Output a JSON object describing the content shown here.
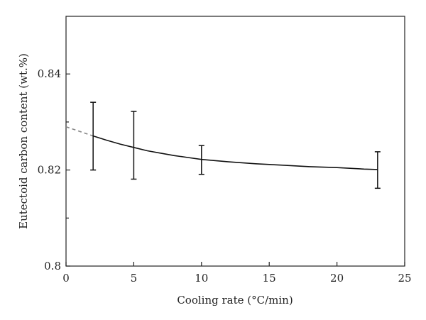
{
  "chart_data": {
    "type": "line",
    "xlabel": "Cooling rate (°C/min)",
    "ylabel": "Eutectoid carbon content (wt.%)",
    "xlim": [
      0,
      25
    ],
    "ylim": [
      0.8,
      0.852
    ],
    "x_ticks": [
      0,
      5,
      10,
      15,
      20,
      25
    ],
    "x_tick_labels": [
      "0",
      "5",
      "10",
      "15",
      "20",
      "25"
    ],
    "y_ticks": [
      0.8,
      0.82,
      0.84
    ],
    "y_tick_labels": [
      "0.8",
      "0.82",
      "0.84"
    ],
    "y_minor_ticks": [
      0.81,
      0.83
    ],
    "grid": false,
    "fit_curve": {
      "x": [
        2,
        3,
        4,
        5,
        6,
        7,
        8,
        9,
        10,
        12,
        14,
        16,
        18,
        20,
        22,
        23
      ],
      "y": [
        0.8271,
        0.8262,
        0.8254,
        0.8247,
        0.824,
        0.8235,
        0.823,
        0.8226,
        0.8222,
        0.8217,
        0.8213,
        0.821,
        0.8207,
        0.8205,
        0.8202,
        0.8201
      ]
    },
    "extrapolation": {
      "x": [
        0,
        2
      ],
      "y": [
        0.829,
        0.8271
      ],
      "style": "dashed",
      "color": "#888888"
    },
    "error_bars": [
      {
        "x": 2,
        "low": 0.82,
        "high": 0.8341
      },
      {
        "x": 5,
        "low": 0.8181,
        "high": 0.8322
      },
      {
        "x": 10,
        "low": 0.8191,
        "high": 0.8251
      },
      {
        "x": 23,
        "low": 0.8162,
        "high": 0.8238
      }
    ],
    "line_color": "#111111"
  }
}
